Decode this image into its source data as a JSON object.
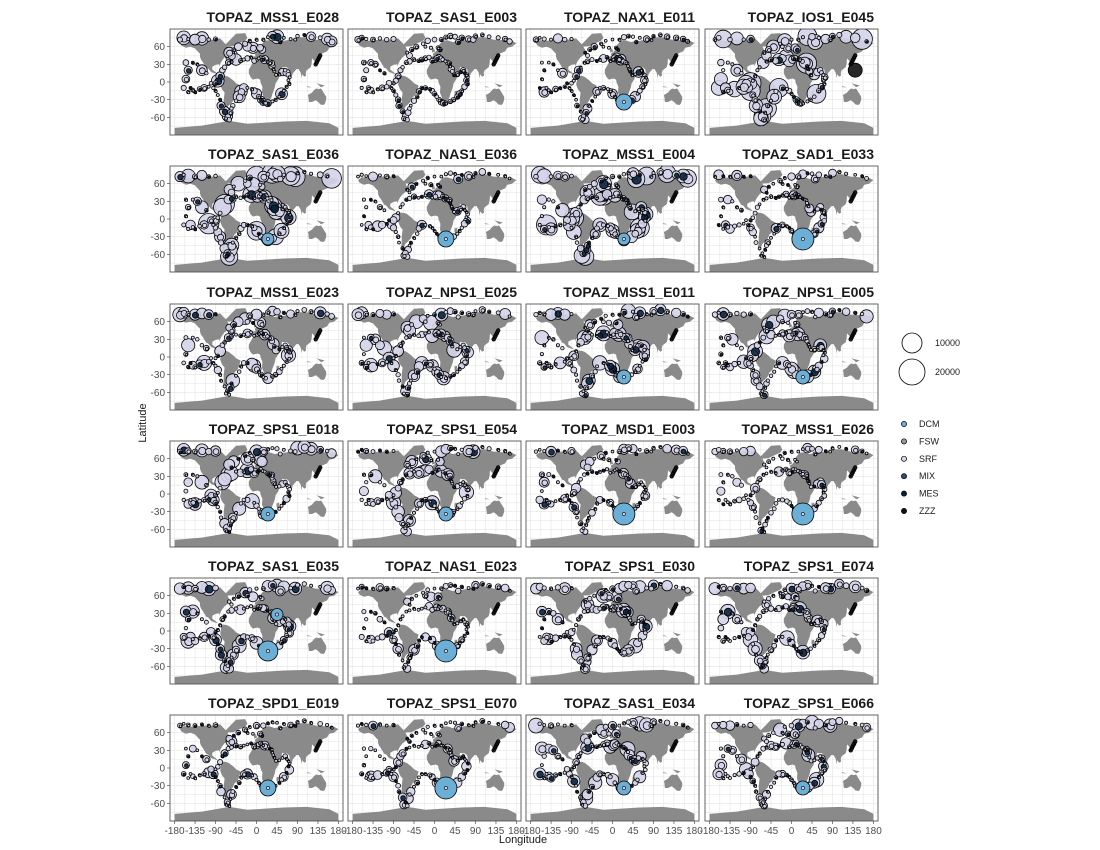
{
  "chart_data": {
    "type": "scatter",
    "subtype": "faceted-world-map-bubble",
    "xlabel": "Longitude",
    "ylabel": "Latitude",
    "xlim": [
      -190,
      190
    ],
    "ylim": [
      -90,
      90
    ],
    "x_ticks": [
      -180,
      -135,
      -90,
      -45,
      0,
      45,
      90,
      135,
      180
    ],
    "y_ticks": [
      60,
      30,
      0,
      -30,
      -60
    ],
    "grid": true,
    "legend_position": "right",
    "size_legend": {
      "values": [
        10000,
        20000
      ]
    },
    "fill_legend": {
      "entries": [
        {
          "label": "DCM",
          "color": "#6baed6"
        },
        {
          "label": "FSW",
          "color": "#969696"
        },
        {
          "label": "SRF",
          "color": "#d4d4ea"
        },
        {
          "label": "MIX",
          "color": "#2c4e7a"
        },
        {
          "label": "MES",
          "color": "#08213a"
        },
        {
          "label": "ZZZ",
          "color": "#111111"
        }
      ]
    },
    "colors": {
      "land": "#8a8a8a",
      "grid": "#e4e4e4",
      "panel_border": "#555555"
    },
    "panels": [
      {
        "title": "TOPAZ_MSS1_E028",
        "pattern": "srf-medium"
      },
      {
        "title": "TOPAZ_SAS1_E003",
        "pattern": "small"
      },
      {
        "title": "TOPAZ_NAX1_E011",
        "pattern": "dcm-south-atlantic"
      },
      {
        "title": "TOPAZ_IOS1_E045",
        "pattern": "srf-large"
      },
      {
        "title": "TOPAZ_SAS1_E036",
        "pattern": "srf-large-dcm"
      },
      {
        "title": "TOPAZ_NAS1_E036",
        "pattern": "dcm-south-atlantic"
      },
      {
        "title": "TOPAZ_MSS1_E004",
        "pattern": "srf-large-dcm"
      },
      {
        "title": "TOPAZ_SAD1_E033",
        "pattern": "dcm-large"
      },
      {
        "title": "TOPAZ_MSS1_E023",
        "pattern": "srf-medium"
      },
      {
        "title": "TOPAZ_NPS1_E025",
        "pattern": "srf-medium"
      },
      {
        "title": "TOPAZ_MSS1_E011",
        "pattern": "srf-medium-dcm"
      },
      {
        "title": "TOPAZ_NPS1_E005",
        "pattern": "srf-medium-dcm"
      },
      {
        "title": "TOPAZ_SPS1_E018",
        "pattern": "srf-medium-dcm"
      },
      {
        "title": "TOPAZ_SPS1_E054",
        "pattern": "srf-medium-dcm"
      },
      {
        "title": "TOPAZ_MSD1_E003",
        "pattern": "dcm-large"
      },
      {
        "title": "TOPAZ_MSS1_E026",
        "pattern": "dcm-large"
      },
      {
        "title": "TOPAZ_SAS1_E035",
        "pattern": "dcm-two"
      },
      {
        "title": "TOPAZ_NAS1_E023",
        "pattern": "dcm-large"
      },
      {
        "title": "TOPAZ_SPS1_E030",
        "pattern": "srf-medium"
      },
      {
        "title": "TOPAZ_SPS1_E074",
        "pattern": "srf-medium"
      },
      {
        "title": "TOPAZ_SPD1_E019",
        "pattern": "dcm-south-atlantic"
      },
      {
        "title": "TOPAZ_SPS1_E070",
        "pattern": "dcm-large"
      },
      {
        "title": "TOPAZ_SAS1_E034",
        "pattern": "srf-medium-dcm"
      },
      {
        "title": "TOPAZ_SPS1_E066",
        "pattern": "srf-medium-dcm"
      }
    ]
  }
}
